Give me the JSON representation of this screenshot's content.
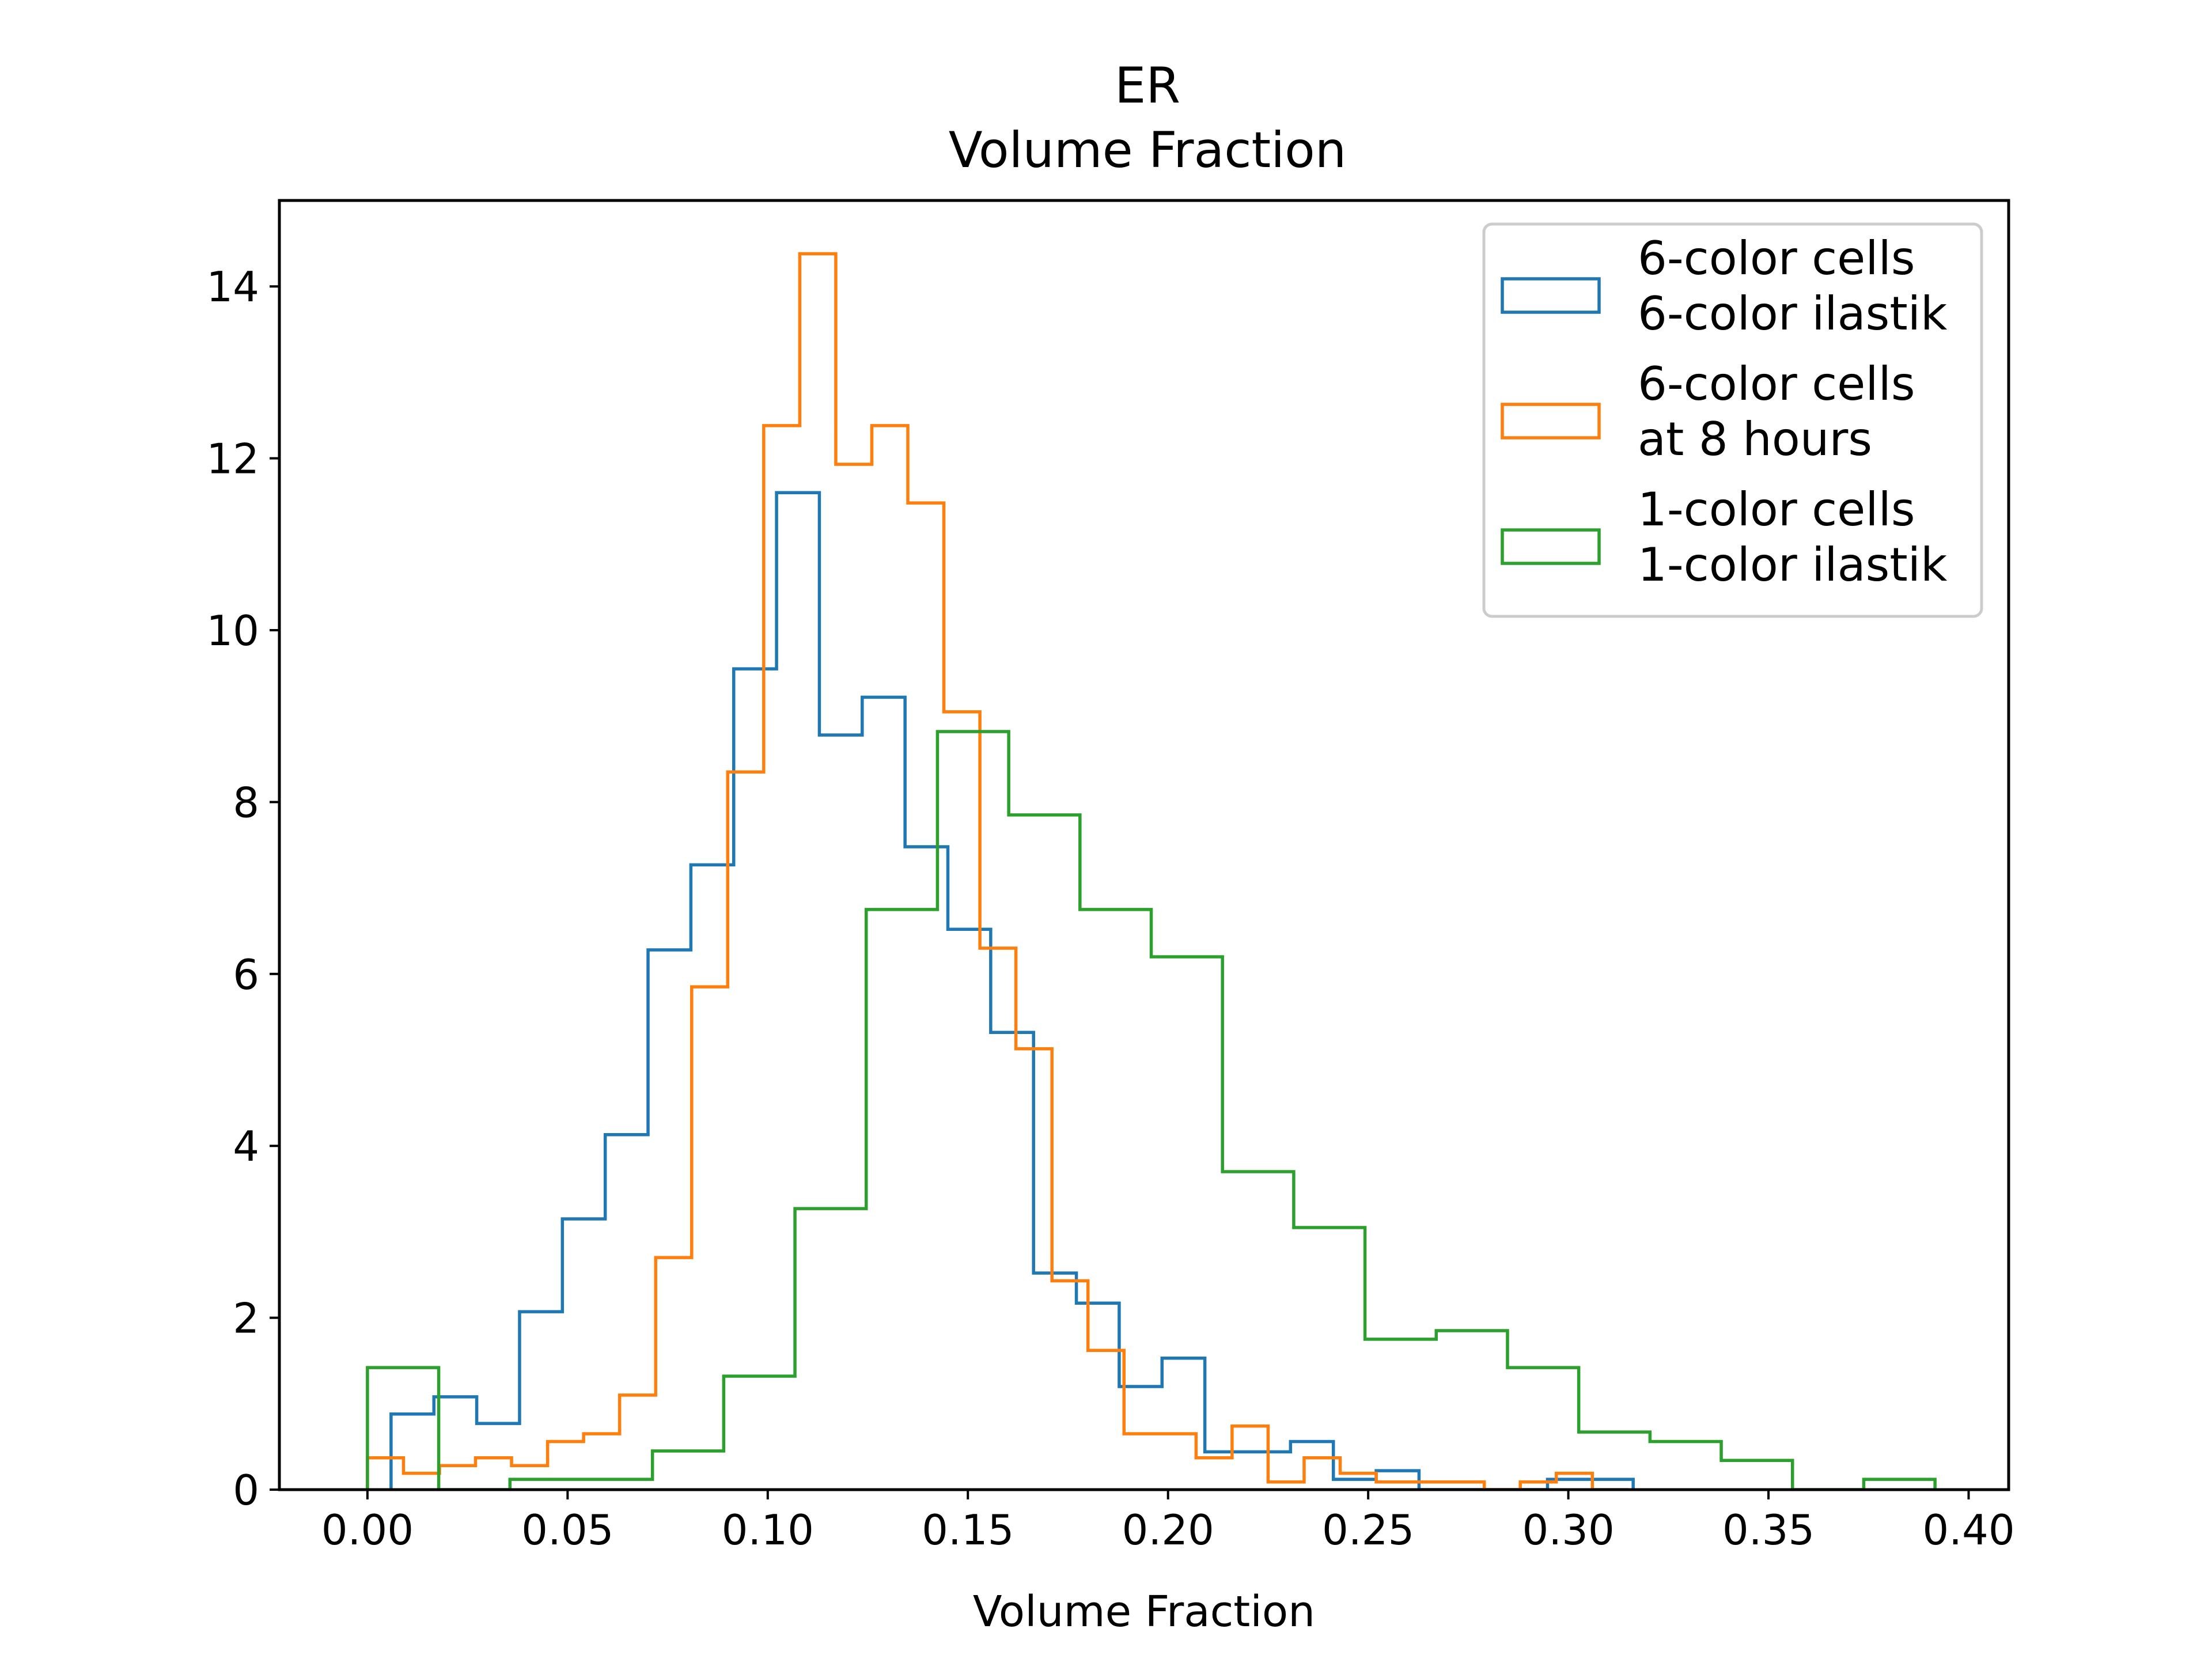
{
  "chart_data": {
    "type": "histogram",
    "title": [
      "ER",
      "Volume Fraction"
    ],
    "xlabel": "Volume Fraction",
    "ylabel": "",
    "xlim": [
      -0.022,
      0.41
    ],
    "ylim": [
      0,
      15
    ],
    "xticks": [
      0.0,
      0.05,
      0.1,
      0.15,
      0.2,
      0.25,
      0.3,
      0.35,
      0.4
    ],
    "xtick_labels": [
      "0.00",
      "0.05",
      "0.10",
      "0.15",
      "0.20",
      "0.25",
      "0.30",
      "0.35",
      "0.40"
    ],
    "yticks": [
      0,
      2,
      4,
      6,
      8,
      10,
      12,
      14
    ],
    "ytick_labels": [
      "0",
      "2",
      "4",
      "6",
      "8",
      "10",
      "12",
      "14"
    ],
    "grid": false,
    "legend_position": "top-right",
    "series": [
      {
        "name": "6-color cells\n6-color ilastik",
        "color": "#1f77b4",
        "edges": [
          0.0059,
          0.0166,
          0.0273,
          0.038,
          0.0487,
          0.0594,
          0.0701,
          0.0808,
          0.0915,
          0.1022,
          0.1129,
          0.1236,
          0.1343,
          0.145,
          0.1557,
          0.1664,
          0.1771,
          0.1878,
          0.1985,
          0.2092,
          0.2199,
          0.2306,
          0.2413,
          0.252,
          0.2627,
          0.2734,
          0.2841,
          0.2948,
          0.3055,
          0.3162
        ],
        "values": [
          0.88,
          1.08,
          0.77,
          2.07,
          3.15,
          4.13,
          6.28,
          7.27,
          9.55,
          11.6,
          8.78,
          9.22,
          7.48,
          6.52,
          5.32,
          2.52,
          2.17,
          1.2,
          1.53,
          0.44,
          0.44,
          0.56,
          0.12,
          0.22,
          0.0,
          0.0,
          0.0,
          0.12,
          0.12
        ]
      },
      {
        "name": "6-color cells\n at 8 hours",
        "color": "#ff7f0e",
        "edges": [
          0.0,
          0.009,
          0.018,
          0.027,
          0.036,
          0.045,
          0.054,
          0.063,
          0.072,
          0.081,
          0.09,
          0.099,
          0.108,
          0.117,
          0.126,
          0.135,
          0.144,
          0.153,
          0.162,
          0.171,
          0.18,
          0.189,
          0.198,
          0.207,
          0.216,
          0.225,
          0.234,
          0.243,
          0.252,
          0.261,
          0.27,
          0.279,
          0.288,
          0.297,
          0.306,
          0.315
        ],
        "values": [
          0.37,
          0.19,
          0.28,
          0.37,
          0.28,
          0.56,
          0.65,
          1.1,
          2.7,
          5.85,
          8.35,
          12.38,
          14.38,
          11.93,
          12.38,
          11.48,
          9.05,
          6.3,
          5.13,
          2.43,
          1.62,
          0.65,
          0.65,
          0.37,
          0.74,
          0.09,
          0.37,
          0.19,
          0.09,
          0.09,
          0.09,
          0.0,
          0.09,
          0.19,
          0.0
        ]
      },
      {
        "name": "1-color cells\n1-color ilastik",
        "color": "#2ca02c",
        "edges": [
          0.0,
          0.0178,
          0.0356,
          0.0534,
          0.0712,
          0.089,
          0.1068,
          0.1246,
          0.1424,
          0.1602,
          0.178,
          0.1958,
          0.2136,
          0.2314,
          0.2492,
          0.267,
          0.2848,
          0.3026,
          0.3204,
          0.3382,
          0.356,
          0.3738,
          0.3916
        ],
        "values": [
          1.42,
          0.0,
          0.12,
          0.12,
          0.45,
          1.32,
          3.27,
          6.75,
          8.82,
          7.85,
          6.75,
          6.2,
          3.7,
          3.05,
          1.75,
          1.85,
          1.42,
          0.67,
          0.56,
          0.34,
          0.0,
          0.12
        ]
      }
    ]
  }
}
